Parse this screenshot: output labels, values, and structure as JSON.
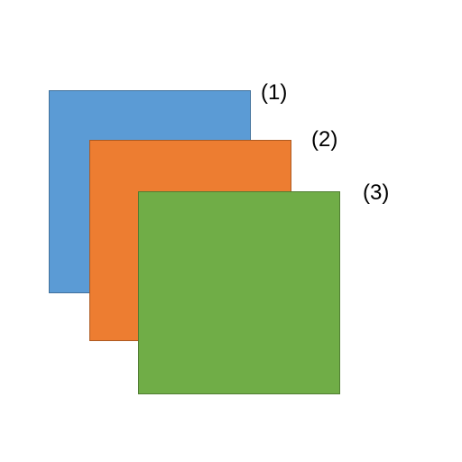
{
  "diagram": {
    "layers": [
      {
        "id": 1,
        "label": "(1)",
        "fill": "#5b9bd5",
        "stroke": "#41719c"
      },
      {
        "id": 2,
        "label": "(2)",
        "fill": "#ed7d31",
        "stroke": "#ae5a21"
      },
      {
        "id": 3,
        "label": "(3)",
        "fill": "#70ad47",
        "stroke": "#507e32"
      }
    ]
  }
}
